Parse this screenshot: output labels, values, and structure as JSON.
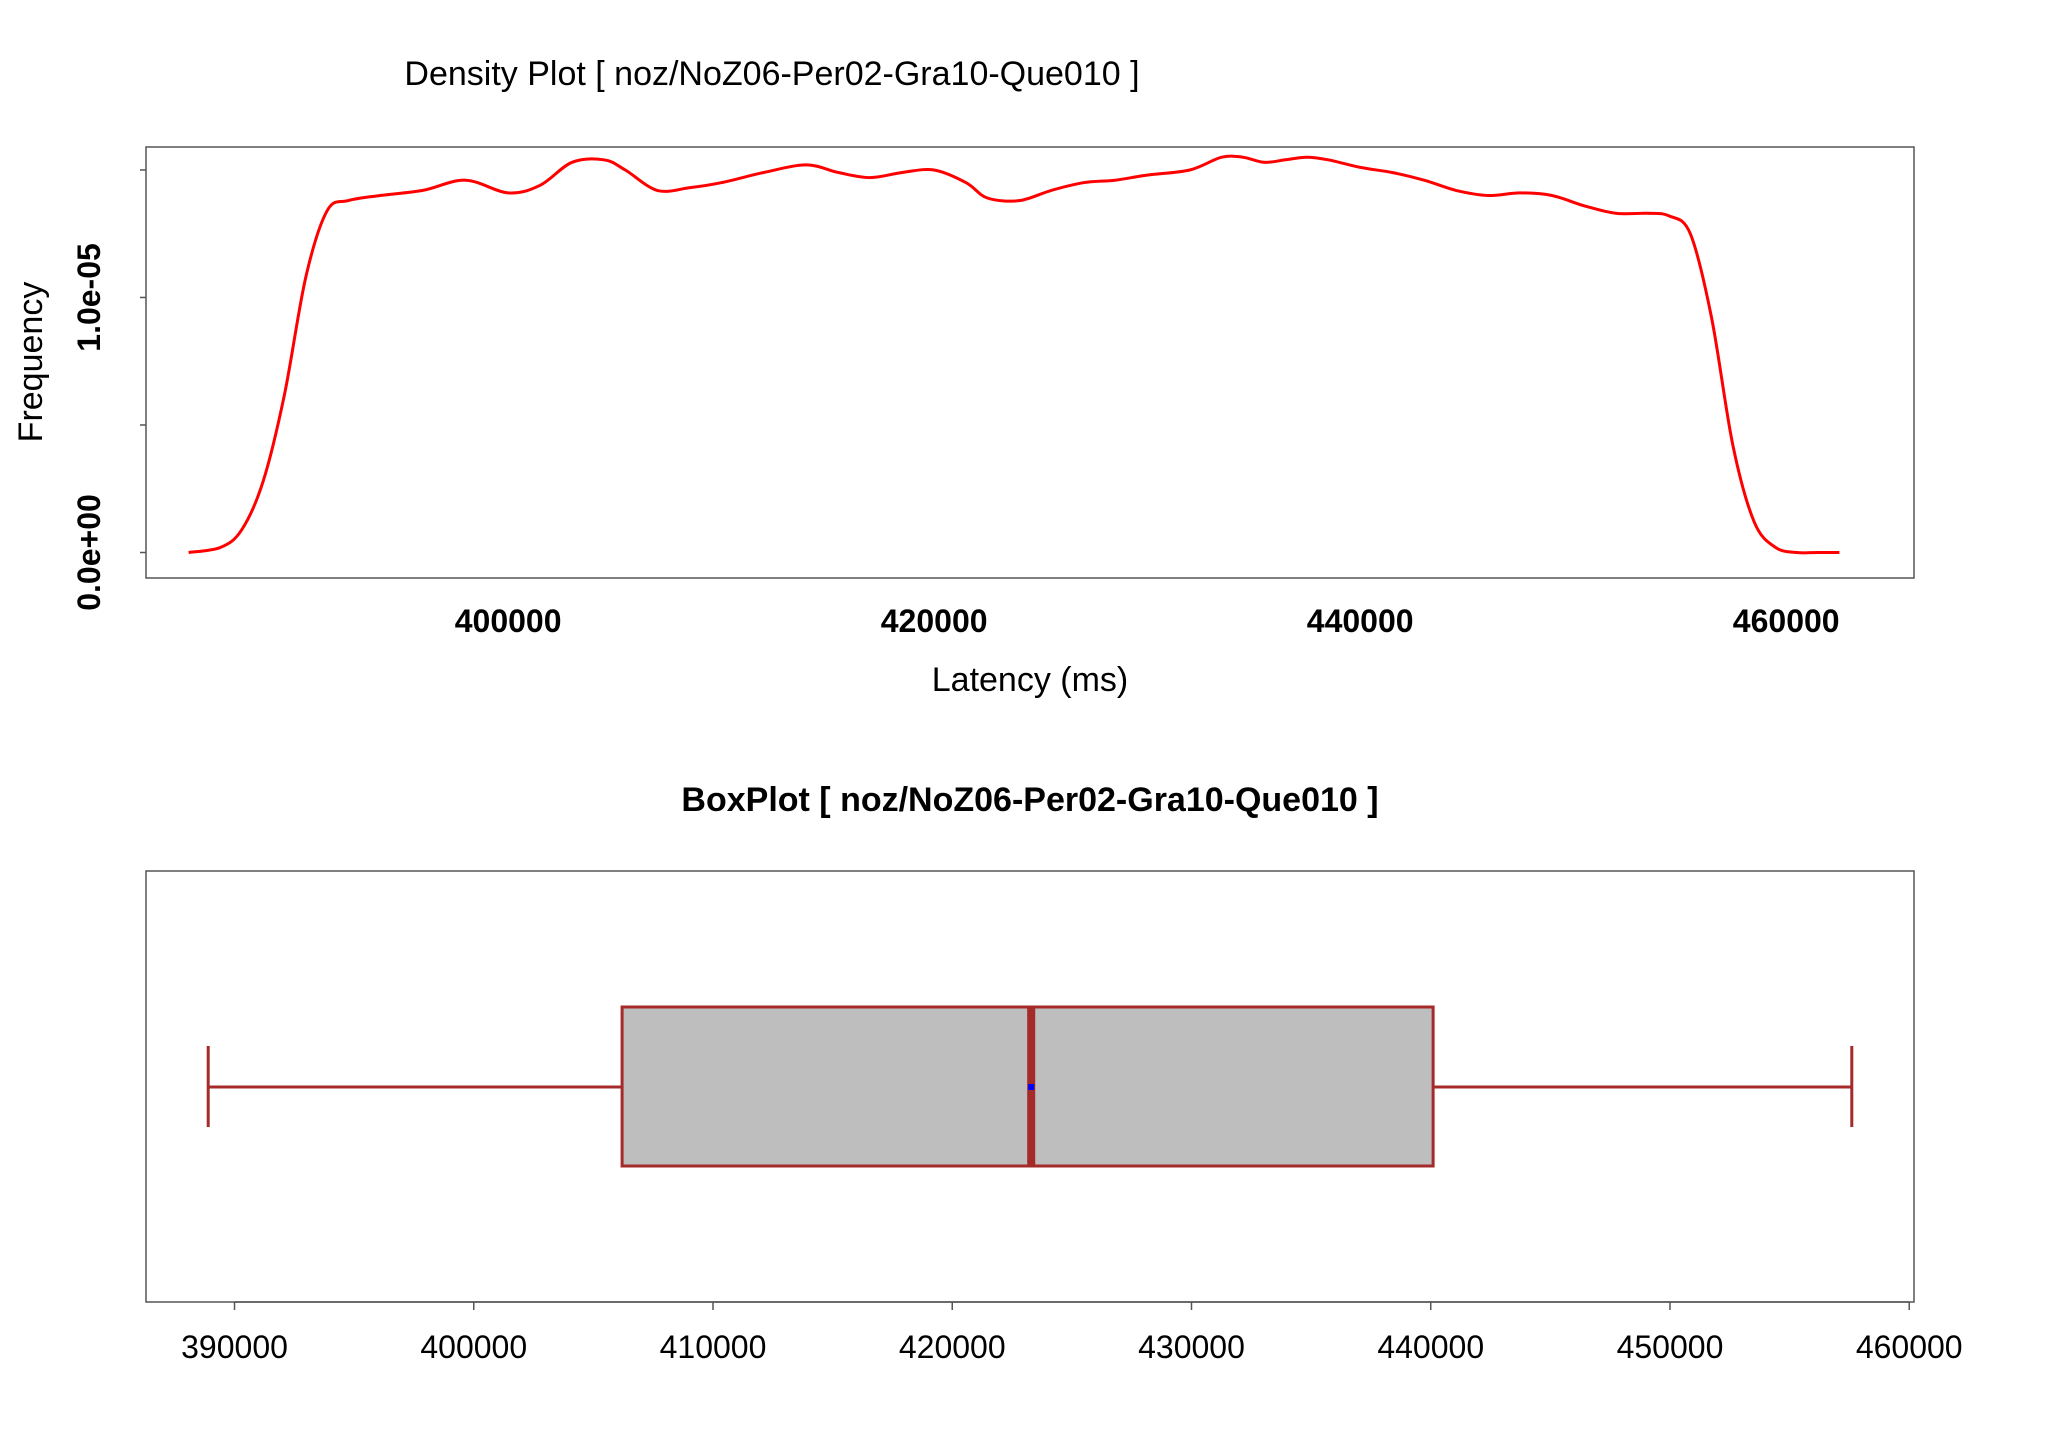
{
  "chart_data": [
    {
      "type": "line",
      "title": "Density Plot [ noz/NoZ06-Per02-Gra10-Que010 ]",
      "xlabel": "Latency (ms)",
      "ylabel": "Frequency",
      "xlim": [
        383000,
        466000
      ],
      "ylim": [
        -1e-06,
        1.59e-05
      ],
      "x_ticks": [
        400000,
        420000,
        440000,
        460000
      ],
      "x_tick_labels": [
        "400000",
        "420000",
        "440000",
        "460000"
      ],
      "y_ticks": [
        0,
        5e-06,
        1e-05,
        1.5e-05
      ],
      "y_tick_labels": [
        "0.0e+00",
        "1.0e-05"
      ],
      "grid": false,
      "color": "#ff0000",
      "series": [
        {
          "x": [
            385000,
            386500,
            387500,
            388500,
            389500,
            390500,
            391500,
            392500,
            394000,
            396000,
            398000,
            400000,
            401500,
            403000,
            404500,
            405500,
            407000,
            408500,
            410000,
            412000,
            414000,
            415500,
            417000,
            418500,
            420000,
            421500,
            422500,
            424000,
            425500,
            427000,
            428500,
            430000,
            432000,
            433500,
            434500,
            435500,
            436500,
            437500,
            438500,
            440000,
            441500,
            443000,
            444500,
            446000,
            447500,
            449000,
            450500,
            452000,
            453500,
            454500,
            455500,
            456500,
            457500,
            458500,
            459500,
            460500,
            461500,
            462500
          ],
          "y": [
            0,
            2e-07,
            9e-07,
            2.8e-06,
            6.2e-06,
            1.08e-05,
            1.34e-05,
            1.38e-05,
            1.4e-05,
            1.42e-05,
            1.46e-05,
            1.41e-05,
            1.44e-05,
            1.53e-05,
            1.54e-05,
            1.5e-05,
            1.42e-05,
            1.43e-05,
            1.45e-05,
            1.49e-05,
            1.52e-05,
            1.49e-05,
            1.47e-05,
            1.49e-05,
            1.5e-05,
            1.45e-05,
            1.39e-05,
            1.38e-05,
            1.42e-05,
            1.45e-05,
            1.46e-05,
            1.48e-05,
            1.5e-05,
            1.55e-05,
            1.55e-05,
            1.53e-05,
            1.54e-05,
            1.55e-05,
            1.54e-05,
            1.51e-05,
            1.49e-05,
            1.46e-05,
            1.42e-05,
            1.4e-05,
            1.41e-05,
            1.4e-05,
            1.36e-05,
            1.33e-05,
            1.33e-05,
            1.32e-05,
            1.25e-05,
            9.2e-06,
            4.2e-06,
            1.2e-06,
            2e-07,
            0,
            0,
            0
          ]
        }
      ]
    },
    {
      "type": "box",
      "title": "BoxPlot [ noz/NoZ06-Per02-Gra10-Que010 ]",
      "xlim": [
        386300,
        460200
      ],
      "x_ticks": [
        390000,
        400000,
        410000,
        420000,
        430000,
        440000,
        450000,
        460000
      ],
      "x_tick_labels": [
        "390000",
        "400000",
        "410000",
        "420000",
        "430000",
        "440000",
        "450000",
        "460000"
      ],
      "grid": false,
      "min": 388900,
      "q1": 406200,
      "median": 423300,
      "mean": 423300,
      "q3": 440100,
      "max": 457600,
      "box_fill": "#bebebe",
      "line_color": "#a52a2a",
      "mean_color": "#0000ff"
    }
  ]
}
